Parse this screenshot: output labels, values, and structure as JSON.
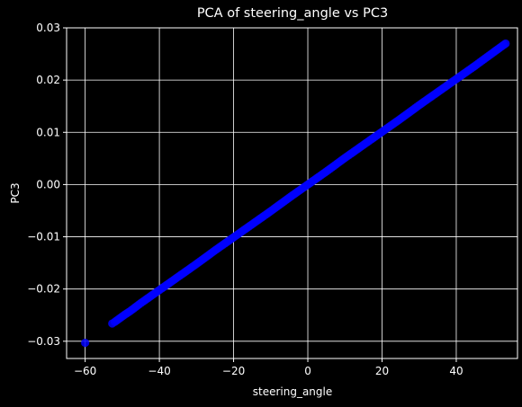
{
  "chart_data": {
    "type": "scatter",
    "title": "PCA of steering_angle vs PC3",
    "xlabel": "steering_angle",
    "ylabel": "PC3",
    "xlim": [
      -65,
      56.5
    ],
    "ylim": [
      -0.0333,
      0.03
    ],
    "xticks": [
      -60,
      -40,
      -20,
      0,
      20,
      40
    ],
    "xtick_labels": [
      "−60",
      "−40",
      "−20",
      "0",
      "20",
      "40"
    ],
    "yticks": [
      -0.03,
      -0.02,
      -0.01,
      0.0,
      0.01,
      0.02,
      0.03
    ],
    "ytick_labels": [
      "−0.03",
      "−0.02",
      "−0.01",
      "0.00",
      "0.01",
      "0.02",
      "0.03"
    ],
    "grid": true,
    "colors": {
      "background": "#000000",
      "foreground": "#ffffff",
      "grid": "#ffffff",
      "marker": "#0000ff"
    },
    "series": [
      {
        "x": [
          -60.0,
          -52.7,
          -52.0,
          -49.5,
          -48.0,
          -45.0,
          -40.0,
          -35.0,
          -30.0,
          -25.0,
          -20.0,
          -15.0,
          -10.0,
          -5.0,
          0.0,
          5.0,
          10.0,
          15.0,
          20.0,
          25.0,
          30.0,
          35.0,
          40.0,
          45.0,
          50.0,
          53.3
        ],
        "y": [
          -0.0303,
          -0.0266,
          -0.0263,
          -0.025,
          -0.0243,
          -0.0227,
          -0.0202,
          -0.0177,
          -0.0152,
          -0.0126,
          -0.0101,
          -0.0076,
          -0.0051,
          -0.0025,
          0.0,
          0.0025,
          0.0051,
          0.0076,
          0.0101,
          0.0126,
          0.0152,
          0.0177,
          0.0202,
          0.0227,
          0.0253,
          0.027
        ]
      }
    ]
  }
}
